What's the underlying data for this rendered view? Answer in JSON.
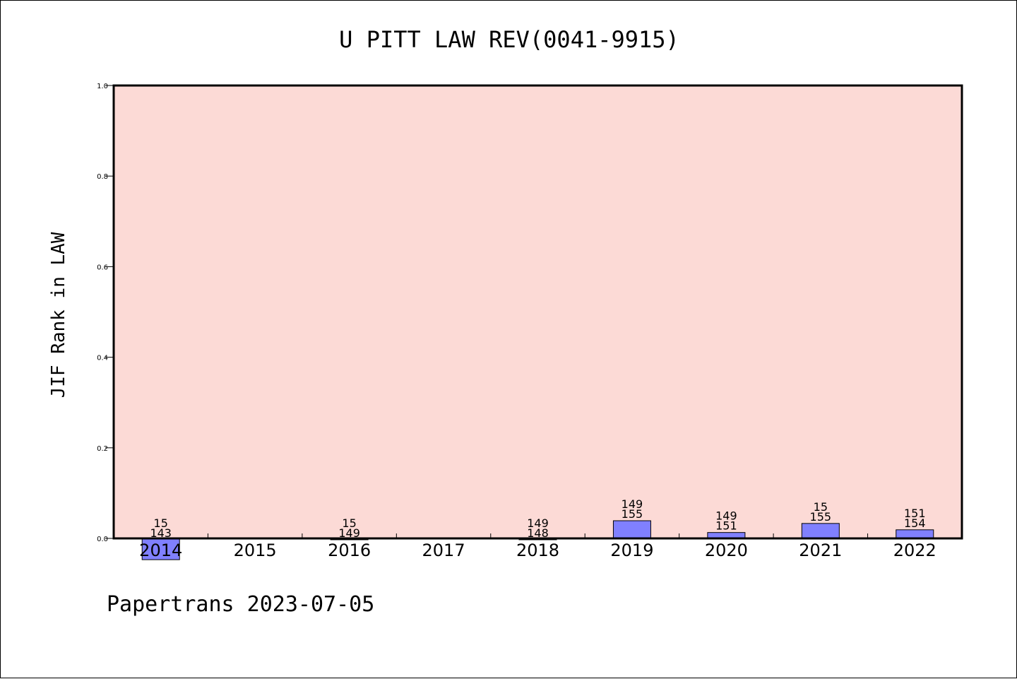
{
  "chart_data": {
    "type": "bar",
    "title": "U PITT LAW REV(0041-9915)",
    "ylabel": "JIF Rank in LAW",
    "xlabel": "",
    "ylim": [
      0,
      1.0
    ],
    "yticks": [
      "0.0",
      "0.2",
      "0.4",
      "0.6",
      "0.8",
      "1.0"
    ],
    "ytick_values": [
      0.0,
      0.2,
      0.4,
      0.6,
      0.8,
      1.0
    ],
    "grid": false,
    "categories": [
      "2014",
      "2015",
      "2016",
      "2017",
      "2018",
      "2019",
      "2020",
      "2021",
      "2022"
    ],
    "values": [
      -0.047,
      null,
      -0.003,
      null,
      -0.003,
      0.039,
      0.013,
      0.033,
      0.019
    ],
    "labels_top": [
      "15",
      "",
      "15",
      "",
      "149",
      "149",
      "149",
      "15",
      "151"
    ],
    "labels_bottom": [
      "143",
      "",
      "149",
      "",
      "148",
      "155",
      "151",
      "155",
      "154"
    ],
    "footer": "Papertrans 2023-07-05"
  },
  "colors": {
    "plot_background": "#fcdad6",
    "bar_fill": "#8080ff",
    "bar_stroke": "#000000",
    "axis": "#000000"
  }
}
